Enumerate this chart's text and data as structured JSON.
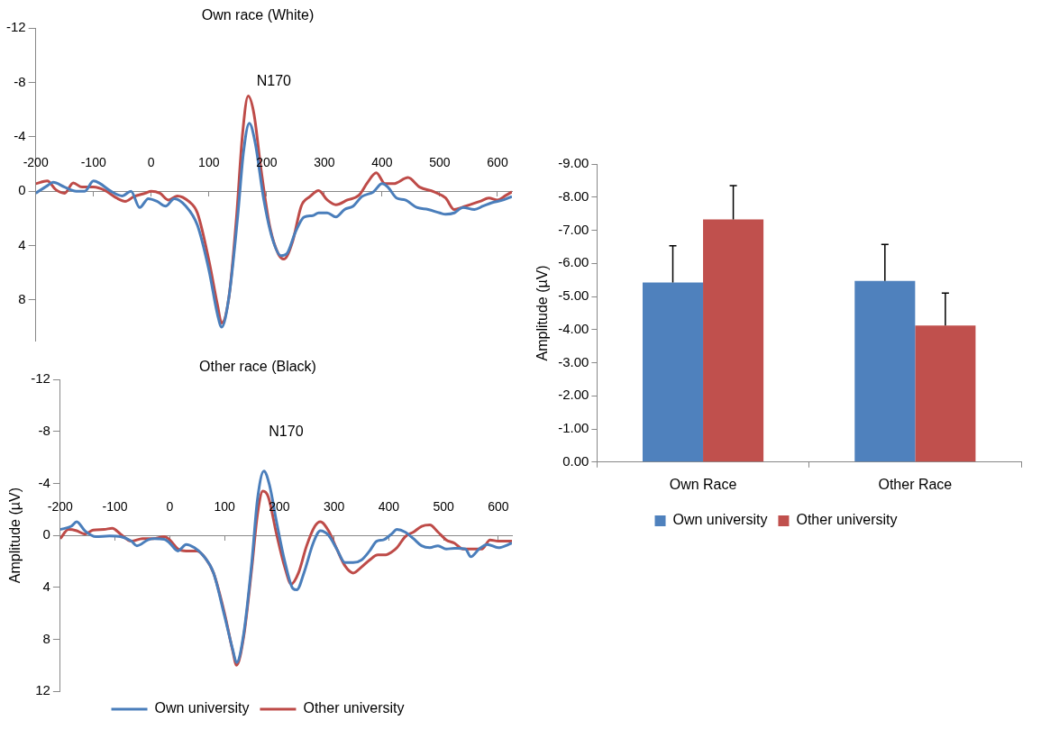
{
  "chart_data": [
    {
      "type": "line",
      "title": "Own race (White)",
      "marker": "none",
      "legend": false,
      "xlim": [
        -200,
        625
      ],
      "xticks": [
        -200,
        -100,
        0,
        100,
        200,
        300,
        400,
        500,
        600
      ],
      "ylim": [
        11,
        -12
      ],
      "yticks": [
        -12,
        -8,
        -4,
        0,
        4,
        8
      ],
      "annotations": [
        "N170"
      ],
      "series": [
        {
          "color": "#4a7ebb",
          "x": [
            -200,
            -180,
            -170,
            -150,
            -130,
            -115,
            -100,
            -90,
            -70,
            -50,
            -35,
            -20,
            -5,
            10,
            25,
            40,
            60,
            80,
            100,
            115,
            122,
            135,
            150,
            160,
            170,
            180,
            195,
            210,
            225,
            235,
            250,
            265,
            280,
            290,
            305,
            320,
            335,
            350,
            365,
            385,
            400,
            410,
            425,
            440,
            460,
            480,
            500,
            510,
            525,
            540,
            560,
            575,
            590,
            610,
            625
          ],
          "values": [
            0.15,
            -0.4,
            -0.65,
            -0.3,
            0,
            0,
            -0.75,
            -0.6,
            0,
            0.35,
            0,
            1.2,
            0.55,
            0.75,
            1.1,
            0.55,
            1.1,
            2.5,
            5.8,
            9.1,
            10,
            7.7,
            1.8,
            -2.9,
            -5,
            -3.6,
            0.6,
            3.5,
            4.75,
            4.6,
            3,
            1.9,
            1.8,
            1.6,
            1.6,
            1.9,
            1.35,
            1.1,
            0.4,
            0.05,
            -0.55,
            -0.3,
            0.5,
            0.65,
            1.2,
            1.35,
            1.6,
            1.7,
            1.6,
            1.2,
            1.35,
            1.1,
            0.85,
            0.65,
            0.4
          ]
        },
        {
          "color": "#be4b48",
          "x": [
            -200,
            -180,
            -165,
            -150,
            -135,
            -120,
            -100,
            -80,
            -60,
            -45,
            -30,
            -10,
            0,
            15,
            30,
            45,
            65,
            80,
            100,
            115,
            122,
            135,
            148,
            158,
            168,
            178,
            190,
            205,
            220,
            230,
            245,
            260,
            275,
            290,
            305,
            320,
            340,
            360,
            375,
            390,
            405,
            420,
            445,
            465,
            490,
            510,
            525,
            545,
            570,
            585,
            600,
            615,
            625
          ],
          "values": [
            -0.55,
            -0.75,
            -0.1,
            0.15,
            -0.6,
            -0.3,
            -0.3,
            -0.05,
            0.5,
            0.75,
            0.4,
            0.15,
            0,
            0.15,
            0.65,
            0.35,
            0.75,
            1.6,
            5.1,
            8.4,
            9.7,
            7.7,
            1.8,
            -4.1,
            -7,
            -5.7,
            -1.7,
            2.5,
            4.6,
            5,
            3.7,
            1.1,
            0.4,
            -0.05,
            0.65,
            1,
            0.65,
            0.3,
            -0.65,
            -1.35,
            -0.55,
            -0.55,
            -1,
            -0.3,
            0.05,
            0.5,
            1.35,
            1.1,
            0.75,
            0.5,
            0.65,
            0.3,
            0.05
          ]
        }
      ]
    },
    {
      "type": "line",
      "title": "Other race (Black)",
      "ylabel": "Amplitude (µV)",
      "marker": "none",
      "legend": "bottom",
      "xlim": [
        -200,
        625
      ],
      "xticks": [
        -200,
        -100,
        0,
        100,
        200,
        300,
        400,
        500,
        600
      ],
      "ylim": [
        12,
        -12
      ],
      "yticks": [
        -12,
        -8,
        -4,
        0,
        4,
        8,
        12
      ],
      "annotations": [
        "N170"
      ],
      "series": [
        {
          "name": "Own university",
          "color": "#4a7ebb",
          "x": [
            -200,
            -180,
            -170,
            -155,
            -135,
            -110,
            -90,
            -70,
            -60,
            -40,
            -30,
            -10,
            0,
            15,
            30,
            45,
            60,
            80,
            100,
            115,
            122,
            135,
            150,
            160,
            172,
            182,
            195,
            210,
            225,
            232,
            245,
            262,
            275,
            290,
            305,
            320,
            335,
            350,
            365,
            378,
            390,
            405,
            415,
            430,
            445,
            460,
            475,
            490,
            505,
            520,
            540,
            550,
            565,
            580,
            600,
            625
          ],
          "values": [
            -0.45,
            -0.7,
            -1.05,
            -0.35,
            0.1,
            0.05,
            0.1,
            0.45,
            0.8,
            0.35,
            0.25,
            0.3,
            0.6,
            1.2,
            0.7,
            0.95,
            1.5,
            2.9,
            6.2,
            8.8,
            9.8,
            7.6,
            2,
            -2.7,
            -4.95,
            -3.9,
            -1.05,
            2,
            4.1,
            4.2,
            2.9,
            0.6,
            -0.35,
            0,
            1.05,
            2.1,
            2.1,
            1.9,
            1.2,
            0.45,
            0.35,
            -0.1,
            -0.45,
            -0.25,
            0.25,
            0.8,
            0.95,
            0.8,
            1.05,
            1,
            1.05,
            1.65,
            1.05,
            0.7,
            0.95,
            0.6
          ]
        },
        {
          "name": "Other university",
          "color": "#be4b48",
          "x": [
            -200,
            -185,
            -170,
            -155,
            -140,
            -120,
            -105,
            -90,
            -70,
            -50,
            -30,
            -10,
            0,
            15,
            30,
            50,
            65,
            80,
            100,
            115,
            122,
            135,
            150,
            160,
            170,
            180,
            195,
            210,
            222,
            235,
            250,
            265,
            275,
            290,
            305,
            320,
            335,
            350,
            365,
            380,
            395,
            405,
            415,
            430,
            445,
            460,
            475,
            490,
            505,
            520,
            535,
            550,
            570,
            585,
            600,
            625
          ],
          "values": [
            0.25,
            -0.45,
            -0.35,
            -0.1,
            -0.4,
            -0.45,
            -0.55,
            -0.1,
            0.45,
            0.25,
            0.25,
            0.1,
            0.35,
            1.05,
            1.2,
            1.2,
            1.75,
            2.9,
            6,
            8.9,
            10,
            7.8,
            2.45,
            -1.55,
            -3.4,
            -2.95,
            -0.1,
            2.45,
            3.75,
            2.9,
            0.8,
            -0.7,
            -1.05,
            -0.35,
            1.05,
            2.35,
            2.9,
            2.45,
            1.9,
            1.5,
            1.5,
            1.3,
            0.95,
            0.1,
            -0.25,
            -0.7,
            -0.8,
            -0.25,
            0.35,
            0.6,
            1.05,
            1.05,
            1.05,
            0.35,
            0.45,
            0.45
          ]
        }
      ]
    },
    {
      "type": "bar",
      "ylabel": "Amplitude (µV)",
      "legend": "bottom",
      "categories": [
        "Own Race",
        "Other Race"
      ],
      "ylim": [
        0,
        -9
      ],
      "yticks": [
        {
          "value": 0,
          "label": "0.00"
        },
        {
          "value": -1,
          "label": "-1.00"
        },
        {
          "value": -2,
          "label": "-2.00"
        },
        {
          "value": -3,
          "label": "-3.00"
        },
        {
          "value": -4,
          "label": "-4.00"
        },
        {
          "value": -5,
          "label": "-5.00"
        },
        {
          "value": -6,
          "label": "-6.00"
        },
        {
          "value": -7,
          "label": "-7.00"
        },
        {
          "value": -8,
          "label": "-8.00"
        },
        {
          "value": -9,
          "label": "-9.00"
        }
      ],
      "series": [
        {
          "name": "Own university",
          "color": "#4f81bd",
          "values": [
            -5.42,
            -5.47
          ],
          "errors": [
            [
              -6.53,
              -5.42
            ],
            [
              -6.57,
              -5.47
            ]
          ]
        },
        {
          "name": "Other university",
          "color": "#c0504d",
          "values": [
            -7.33,
            -4.12
          ],
          "errors": [
            [
              -8.35,
              -7.33
            ],
            [
              -5.1,
              -4.12
            ]
          ]
        }
      ]
    }
  ]
}
